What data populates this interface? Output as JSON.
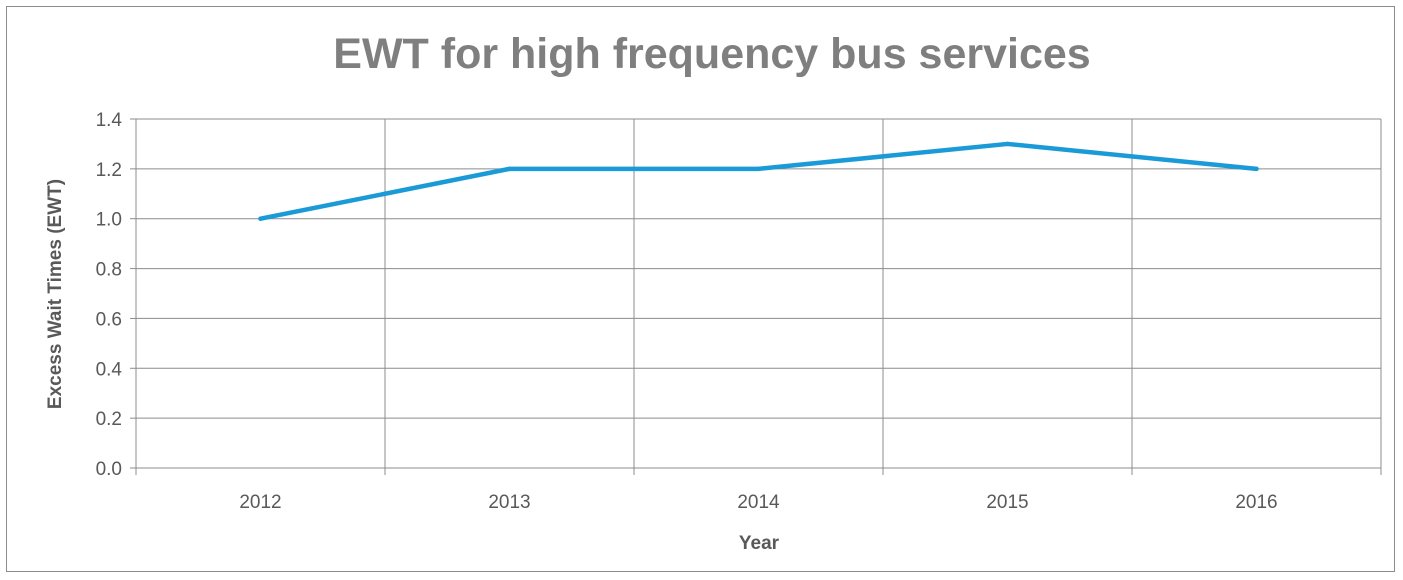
{
  "chart_data": {
    "type": "line",
    "title": "EWT for high frequency bus services",
    "xlabel": "Year",
    "ylabel": "Excess Wait Times (EWT)",
    "categories": [
      "2012",
      "2013",
      "2014",
      "2015",
      "2016"
    ],
    "series": [
      {
        "values": [
          1.0,
          1.2,
          1.2,
          1.3,
          1.2
        ]
      }
    ],
    "ylim": [
      0,
      1.4
    ],
    "yticks": [
      "0.0",
      "0.2",
      "0.4",
      "0.6",
      "0.8",
      "1.0",
      "1.2",
      "1.4"
    ],
    "grid": true,
    "legend": "none",
    "line_color": "#1a9bd7"
  }
}
